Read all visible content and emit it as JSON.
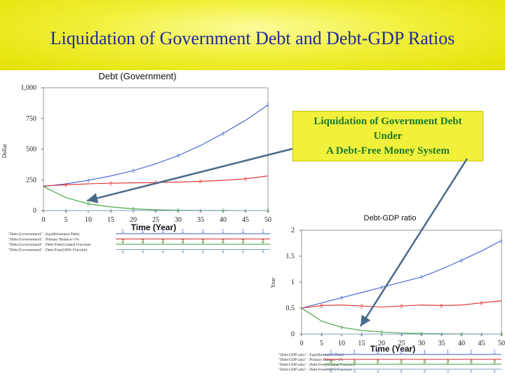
{
  "slide": {
    "title": "Liquidation of Government Debt and Debt-GDP Ratios",
    "callout_lines": [
      "Liquidation of Government Debt",
      "Under",
      "A Debt-Free Money System"
    ]
  },
  "colors": {
    "banner": "#f1f03a",
    "title_text": "#1f2a9c",
    "callout_text": "#1d7a2a",
    "series1": "#3a5fcd",
    "series2": "#e02a2a",
    "series3": "#3aa03a",
    "series4": "#7f9fbf",
    "arrow": "#4a6a8a"
  },
  "chart_data": [
    {
      "type": "line",
      "title": "Debt (Government)",
      "xlabel": "Time (Year)",
      "ylabel": "Dollar",
      "xlim": [
        0,
        50
      ],
      "ylim": [
        0,
        1000
      ],
      "x_ticks": [
        "0",
        "5",
        "10",
        "15",
        "20",
        "25",
        "30",
        "35",
        "40",
        "45",
        "50"
      ],
      "y_ticks": [
        "0",
        "250",
        "500",
        "750",
        "1,000"
      ],
      "x": [
        0,
        5,
        10,
        15,
        20,
        25,
        30,
        35,
        40,
        45,
        50
      ],
      "series": [
        {
          "name": "\"Debt (Government)\" : Equilibrium(no Debt)",
          "marker": "1",
          "color": "#3a5fcd",
          "values": [
            196,
            218,
            246,
            282,
            325,
            380,
            448,
            530,
            628,
            735,
            860
          ]
        },
        {
          "name": "\"Debt (Government)\" : Primary Balance=1%",
          "marker": "2",
          "color": "#e02a2a",
          "values": [
            200,
            210,
            218,
            222,
            225,
            228,
            232,
            238,
            246,
            258,
            282
          ]
        },
        {
          "name": "\"Debt (Government)\" : Debt-Free(Gradual Fraction)",
          "marker": "3",
          "color": "#3aa03a",
          "values": [
            196,
            105,
            55,
            30,
            14,
            6,
            3,
            1,
            1,
            0,
            0
          ]
        },
        {
          "name": "\"Debt (Government)\" : Debt-Free(100% Fraction)",
          "marker": "4",
          "color": "#7f9fbf",
          "values": [
            0,
            0,
            0,
            0,
            0,
            0,
            0,
            0,
            0,
            0,
            0
          ]
        }
      ]
    },
    {
      "type": "line",
      "title": "Debt-GDP ratio",
      "xlabel": "Time (Year)",
      "ylabel": "Year",
      "xlim": [
        0,
        50
      ],
      "ylim": [
        0,
        2
      ],
      "x_ticks": [
        "0",
        "5",
        "10",
        "15",
        "20",
        "25",
        "30",
        "35",
        "40",
        "45",
        "50"
      ],
      "y_ticks": [
        "0",
        "0.5",
        "1",
        "1.5",
        "2"
      ],
      "x": [
        0,
        5,
        10,
        15,
        20,
        25,
        30,
        35,
        40,
        45,
        50
      ],
      "series": [
        {
          "name": "\"Debt-GDP ratio\" : Equilibrium(no Debt)",
          "marker": "1",
          "color": "#3a5fcd",
          "values": [
            0.5,
            0.6,
            0.7,
            0.8,
            0.9,
            1.0,
            1.1,
            1.25,
            1.42,
            1.6,
            1.8
          ]
        },
        {
          "name": "\"Debt-GDP ratio\" : Primary Balance=1%",
          "marker": "2",
          "color": "#e02a2a",
          "values": [
            0.5,
            0.55,
            0.56,
            0.54,
            0.52,
            0.54,
            0.56,
            0.55,
            0.56,
            0.6,
            0.64
          ]
        },
        {
          "name": "\"Debt-GDP ratio\" : Debt-Free(Gradual Fraction)",
          "marker": "3",
          "color": "#3aa03a",
          "values": [
            0.5,
            0.25,
            0.13,
            0.07,
            0.04,
            0.02,
            0.01,
            0.005,
            0.003,
            0.001,
            0
          ]
        },
        {
          "name": "\"Debt-GDP ratio\" : Debt-Free(100% Fraction)",
          "marker": "4",
          "color": "#7f9fbf",
          "values": [
            0,
            0,
            0,
            0,
            0,
            0,
            0,
            0,
            0,
            0,
            0
          ]
        }
      ]
    }
  ]
}
